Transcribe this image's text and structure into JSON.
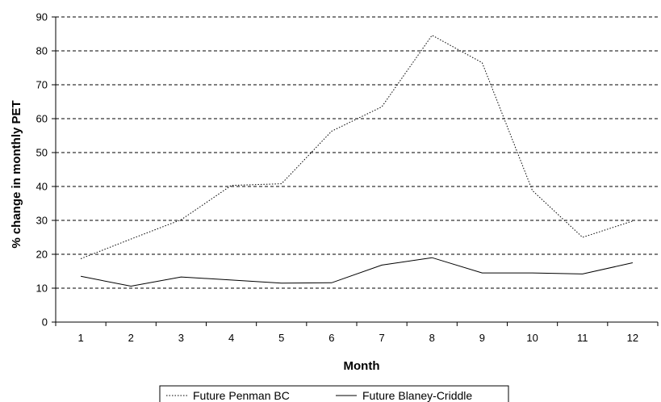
{
  "chart_data": {
    "type": "line",
    "title": "",
    "xlabel": "Month",
    "ylabel": "% change in monthly PET",
    "ylim": [
      0,
      90
    ],
    "y_ticks": [
      0,
      10,
      20,
      30,
      40,
      50,
      60,
      70,
      80,
      90
    ],
    "categories": [
      "1",
      "2",
      "3",
      "4",
      "5",
      "6",
      "7",
      "8",
      "9",
      "10",
      "11",
      "12"
    ],
    "grid": "horizontal dashed",
    "legend_position": "bottom",
    "series": [
      {
        "name": "Future Penman BC",
        "style": "dotted",
        "color": "#000000",
        "values": [
          18.7,
          24.5,
          30.2,
          40.3,
          40.8,
          56.3,
          63.5,
          84.6,
          76.5,
          38.8,
          25.0,
          29.8
        ]
      },
      {
        "name": "Future Blaney-Criddle",
        "style": "solid",
        "color": "#000000",
        "values": [
          13.5,
          10.6,
          13.3,
          12.4,
          11.5,
          11.6,
          16.8,
          19.0,
          14.5,
          14.5,
          14.2,
          17.5
        ]
      }
    ]
  }
}
